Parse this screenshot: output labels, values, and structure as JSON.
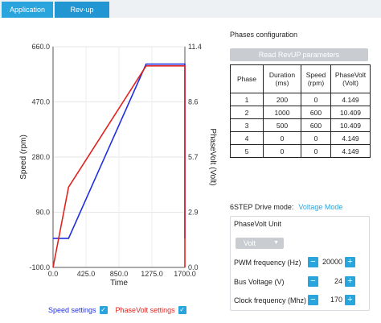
{
  "tabs": [
    {
      "label": "Application"
    },
    {
      "label": "Rev-up"
    }
  ],
  "legend": {
    "speed": "Speed settings",
    "phasevolt": "PhaseVolt settings",
    "check": "✓"
  },
  "right": {
    "title": "Phases configuration",
    "read_button": "Read RevUP parameters",
    "table": {
      "headers": [
        "Phase",
        "Duration (ms)",
        "Speed (rpm)",
        "PhaseVolt (Volt)"
      ],
      "rows": [
        [
          "1",
          "200",
          "0",
          "4.149"
        ],
        [
          "2",
          "1000",
          "600",
          "10.409"
        ],
        [
          "3",
          "500",
          "600",
          "10.409"
        ],
        [
          "4",
          "0",
          "0",
          "4.149"
        ],
        [
          "5",
          "0",
          "0",
          "4.149"
        ]
      ]
    },
    "drive_label": "6STEP Drive mode:",
    "drive_value": "Voltage Mode",
    "unit_header": "PhaseVolt Unit",
    "unit_select": "Volt",
    "pwm_label": "PWM frequency (Hz)",
    "pwm_value": "20000",
    "bus_label": "Bus Voltage (V)",
    "bus_value": "24",
    "clock_label": "Clock frequency (Mhz)",
    "clock_value": "170",
    "minus": "−",
    "plus": "+"
  },
  "colors": {
    "accent": "#2aa4dd",
    "speed": "#1f2ee0",
    "phasevolt": "#e0231f"
  },
  "chart_data": {
    "type": "line",
    "xlabel": "Time",
    "ylabel_left": "Speed (rpm)",
    "ylabel_right": "PhaseVolt (Volt)",
    "x_ticks": [
      "0.0",
      "425.0",
      "850.0",
      "1275.0",
      "1700.0"
    ],
    "y_left_ticks": [
      "-100.0",
      "90.0",
      "280.0",
      "470.0",
      "660.0"
    ],
    "y_right_ticks": [
      "0.0",
      "2.9",
      "5.7",
      "8.6",
      "11.4"
    ],
    "xlim": [
      0,
      1700
    ],
    "ylim_left": [
      -100,
      660
    ],
    "ylim_right": [
      0,
      11.4
    ],
    "series": [
      {
        "name": "Speed settings",
        "axis": "left",
        "x": [
          0,
          200,
          1200,
          1700,
          1700
        ],
        "y": [
          0,
          0,
          600,
          600,
          0
        ]
      },
      {
        "name": "PhaseVolt settings",
        "axis": "right",
        "x": [
          0,
          200,
          1200,
          1700,
          1700
        ],
        "y": [
          0,
          4.149,
          10.409,
          10.409,
          0
        ]
      }
    ]
  }
}
